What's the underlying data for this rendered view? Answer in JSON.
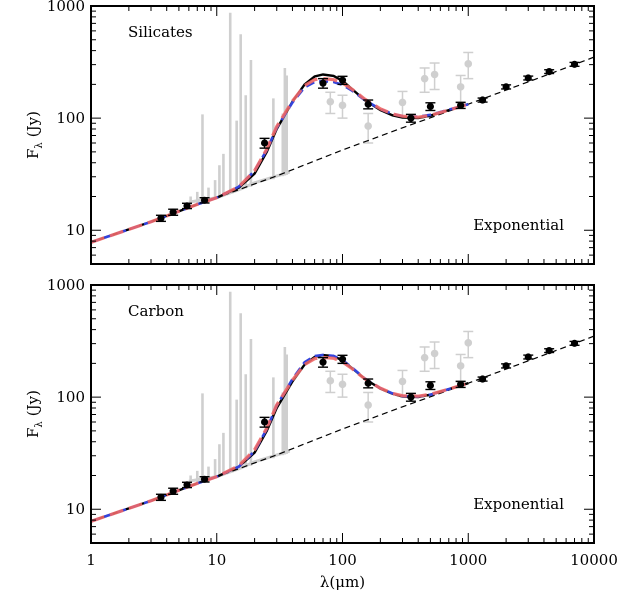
{
  "chart_data": [
    {
      "type": "line",
      "panel_label": "Silicates",
      "corner_label": "Exponential",
      "ylabel": "F",
      "ylabel_sub": "λ",
      "ylabel_unit": "(Jy)",
      "xscale": "log",
      "yscale": "log",
      "xlim": [
        1,
        10000
      ],
      "ylim": [
        5,
        1000
      ],
      "y_tick_labels": [
        "10",
        "100",
        "1000"
      ],
      "colors": {
        "model_black": "#000000",
        "model_blue": "#3344dd",
        "model_red": "#ee6666",
        "grey": "#cfcfcf"
      },
      "continuum": {
        "x": [
          1,
          3,
          7,
          10,
          15,
          30,
          100,
          300,
          1000,
          7000,
          10000
        ],
        "y": [
          7.8,
          11.9,
          17.0,
          19.5,
          23.0,
          30.5,
          52.0,
          82.0,
          133.0,
          300.0,
          350.0
        ]
      },
      "series": [
        {
          "x": [
            1,
            3,
            7,
            10,
            15,
            20,
            25,
            30,
            40,
            50,
            60,
            70,
            85,
            100,
            120,
            150,
            200,
            250,
            300,
            400,
            500,
            700,
            1000
          ],
          "y": [
            7.8,
            11.9,
            17.0,
            19.5,
            24.0,
            32.0,
            50.0,
            80.0,
            140.0,
            200.0,
            235.0,
            245.0,
            238.0,
            215.0,
            180.0,
            145.0,
            118.0,
            106.0,
            101.0,
            100.0,
            105.0,
            118.0,
            133.0
          ]
        },
        {
          "x": [
            1,
            3,
            7,
            10,
            15,
            20,
            25,
            30,
            40,
            50,
            60,
            70,
            85,
            100,
            120,
            150,
            200,
            250,
            300,
            400,
            500,
            700,
            1000
          ],
          "y": [
            7.8,
            11.9,
            17.0,
            19.5,
            24.5,
            34.0,
            52.0,
            82.0,
            138.0,
            188.0,
            210.0,
            214.0,
            210.0,
            198.0,
            175.0,
            145.0,
            120.0,
            109.0,
            104.0,
            103.0,
            107.0,
            119.0,
            133.0
          ]
        },
        {
          "x": [
            1,
            3,
            7,
            10,
            15,
            20,
            25,
            30,
            40,
            50,
            60,
            70,
            85,
            100,
            120,
            150,
            200,
            250,
            300,
            400,
            500,
            700,
            1000
          ],
          "y": [
            7.8,
            11.9,
            17.0,
            19.5,
            24.5,
            34.0,
            53.0,
            84.0,
            142.0,
            195.0,
            220.0,
            225.0,
            220.0,
            206.0,
            180.0,
            148.0,
            121.0,
            109.0,
            104.0,
            102.0,
            106.0,
            118.0,
            133.0
          ]
        }
      ],
      "photometry": [
        {
          "x": 3.6,
          "y": 12.8,
          "err": 0.8
        },
        {
          "x": 4.5,
          "y": 14.5,
          "err": 0.9
        },
        {
          "x": 5.8,
          "y": 16.5,
          "err": 0.9
        },
        {
          "x": 8.0,
          "y": 18.5,
          "err": 1.0
        },
        {
          "x": 24,
          "y": 60,
          "err": 6
        },
        {
          "x": 70,
          "y": 205,
          "err": 20
        },
        {
          "x": 100,
          "y": 218,
          "err": 18
        },
        {
          "x": 160,
          "y": 133,
          "err": 12
        },
        {
          "x": 350,
          "y": 100,
          "err": 8
        },
        {
          "x": 500,
          "y": 127,
          "err": 10
        },
        {
          "x": 870,
          "y": 130,
          "err": 8
        },
        {
          "x": 1300,
          "y": 145,
          "err": 6
        },
        {
          "x": 2000,
          "y": 190,
          "err": 8
        },
        {
          "x": 3000,
          "y": 228,
          "err": 9
        },
        {
          "x": 4400,
          "y": 260,
          "err": 10
        },
        {
          "x": 7000,
          "y": 302,
          "err": 12
        }
      ],
      "grey_points": [
        {
          "x": 80,
          "y": 140,
          "err": 30
        },
        {
          "x": 100,
          "y": 130,
          "err": 30
        },
        {
          "x": 160,
          "y": 85,
          "err": 25
        },
        {
          "x": 300,
          "y": 138,
          "err": 35
        },
        {
          "x": 450,
          "y": 225,
          "err": 55
        },
        {
          "x": 540,
          "y": 245,
          "err": 65
        },
        {
          "x": 870,
          "y": 190,
          "err": 50
        },
        {
          "x": 1000,
          "y": 305,
          "err": 80
        }
      ],
      "spectrum_lines": [
        {
          "x": 6.2,
          "peak": 20
        },
        {
          "x": 7.0,
          "peak": 22
        },
        {
          "x": 7.7,
          "peak": 108
        },
        {
          "x": 8.6,
          "peak": 24
        },
        {
          "x": 9.7,
          "peak": 28
        },
        {
          "x": 10.5,
          "peak": 38
        },
        {
          "x": 11.3,
          "peak": 48
        },
        {
          "x": 12.8,
          "peak": 870
        },
        {
          "x": 14.4,
          "peak": 95
        },
        {
          "x": 15.5,
          "peak": 560
        },
        {
          "x": 17.0,
          "peak": 160
        },
        {
          "x": 18.7,
          "peak": 330
        },
        {
          "x": 28.2,
          "peak": 150
        },
        {
          "x": 33.5,
          "peak": 110
        },
        {
          "x": 34.8,
          "peak": 280
        },
        {
          "x": 36.0,
          "peak": 240
        }
      ]
    },
    {
      "type": "line",
      "panel_label": "Carbon",
      "corner_label": "Exponential",
      "xlabel": "λ(μm)",
      "ylabel": "F",
      "ylabel_sub": "λ",
      "ylabel_unit": "(Jy)",
      "xscale": "log",
      "yscale": "log",
      "xlim": [
        1,
        10000
      ],
      "ylim": [
        5,
        1000
      ],
      "x_tick_labels": [
        "1",
        "10",
        "100",
        "1000",
        "10000"
      ],
      "y_tick_labels": [
        "10",
        "100",
        "1000"
      ],
      "colors": {
        "model_black": "#000000",
        "model_blue": "#3344dd",
        "model_red": "#ee6666",
        "grey": "#cfcfcf"
      },
      "continuum": {
        "x": [
          1,
          3,
          7,
          10,
          15,
          30,
          100,
          300,
          1000,
          7000,
          10000
        ],
        "y": [
          7.8,
          11.9,
          17.0,
          19.5,
          23.0,
          30.5,
          52.0,
          82.0,
          133.0,
          300.0,
          350.0
        ]
      },
      "series": [
        {
          "x": [
            1,
            3,
            7,
            10,
            15,
            20,
            25,
            30,
            40,
            50,
            60,
            70,
            85,
            100,
            120,
            150,
            200,
            250,
            300,
            400,
            500,
            700,
            1000
          ],
          "y": [
            7.8,
            11.9,
            17.0,
            19.5,
            24.0,
            32.0,
            50.0,
            80.0,
            138.0,
            195.0,
            228.0,
            237.0,
            232.0,
            212.0,
            180.0,
            146.0,
            119.0,
            107.0,
            101.0,
            100.0,
            105.0,
            118.0,
            133.0
          ]
        },
        {
          "x": [
            1,
            3,
            7,
            10,
            15,
            20,
            25,
            30,
            40,
            50,
            60,
            70,
            85,
            100,
            120,
            150,
            200,
            250,
            300,
            400,
            500,
            700,
            1000
          ],
          "y": [
            7.8,
            11.9,
            17.0,
            19.5,
            24.0,
            33.0,
            52.0,
            84.0,
            145.0,
            205.0,
            232.0,
            238.0,
            233.0,
            214.0,
            182.0,
            147.0,
            120.0,
            108.0,
            102.0,
            101.0,
            105.0,
            118.0,
            133.0
          ]
        },
        {
          "x": [
            1,
            3,
            7,
            10,
            15,
            20,
            25,
            30,
            40,
            50,
            60,
            70,
            85,
            100,
            120,
            150,
            200,
            250,
            300,
            400,
            500,
            700,
            1000
          ],
          "y": [
            7.8,
            11.9,
            17.0,
            19.5,
            24.5,
            34.0,
            53.0,
            85.0,
            142.0,
            195.0,
            220.0,
            226.0,
            222.0,
            206.0,
            178.0,
            146.0,
            120.0,
            108.0,
            103.0,
            102.0,
            106.0,
            118.0,
            133.0
          ]
        }
      ],
      "photometry": [
        {
          "x": 3.6,
          "y": 12.8,
          "err": 0.8
        },
        {
          "x": 4.5,
          "y": 14.5,
          "err": 0.9
        },
        {
          "x": 5.8,
          "y": 16.5,
          "err": 0.9
        },
        {
          "x": 8.0,
          "y": 18.5,
          "err": 1.0
        },
        {
          "x": 24,
          "y": 60,
          "err": 6
        },
        {
          "x": 70,
          "y": 205,
          "err": 20
        },
        {
          "x": 100,
          "y": 218,
          "err": 18
        },
        {
          "x": 160,
          "y": 133,
          "err": 12
        },
        {
          "x": 350,
          "y": 100,
          "err": 8
        },
        {
          "x": 500,
          "y": 127,
          "err": 10
        },
        {
          "x": 870,
          "y": 130,
          "err": 8
        },
        {
          "x": 1300,
          "y": 145,
          "err": 6
        },
        {
          "x": 2000,
          "y": 190,
          "err": 8
        },
        {
          "x": 3000,
          "y": 228,
          "err": 9
        },
        {
          "x": 4400,
          "y": 260,
          "err": 10
        },
        {
          "x": 7000,
          "y": 302,
          "err": 12
        }
      ],
      "grey_points": [
        {
          "x": 80,
          "y": 140,
          "err": 30
        },
        {
          "x": 100,
          "y": 130,
          "err": 30
        },
        {
          "x": 160,
          "y": 85,
          "err": 25
        },
        {
          "x": 300,
          "y": 138,
          "err": 35
        },
        {
          "x": 450,
          "y": 225,
          "err": 55
        },
        {
          "x": 540,
          "y": 245,
          "err": 65
        },
        {
          "x": 870,
          "y": 190,
          "err": 50
        },
        {
          "x": 1000,
          "y": 305,
          "err": 80
        }
      ],
      "spectrum_lines": [
        {
          "x": 6.2,
          "peak": 20
        },
        {
          "x": 7.0,
          "peak": 22
        },
        {
          "x": 7.7,
          "peak": 108
        },
        {
          "x": 8.6,
          "peak": 24
        },
        {
          "x": 9.7,
          "peak": 28
        },
        {
          "x": 10.5,
          "peak": 38
        },
        {
          "x": 11.3,
          "peak": 48
        },
        {
          "x": 12.8,
          "peak": 870
        },
        {
          "x": 14.4,
          "peak": 95
        },
        {
          "x": 15.5,
          "peak": 560
        },
        {
          "x": 17.0,
          "peak": 160
        },
        {
          "x": 18.7,
          "peak": 330
        },
        {
          "x": 28.2,
          "peak": 150
        },
        {
          "x": 33.5,
          "peak": 110
        },
        {
          "x": 34.8,
          "peak": 280
        },
        {
          "x": 36.0,
          "peak": 240
        }
      ]
    }
  ]
}
